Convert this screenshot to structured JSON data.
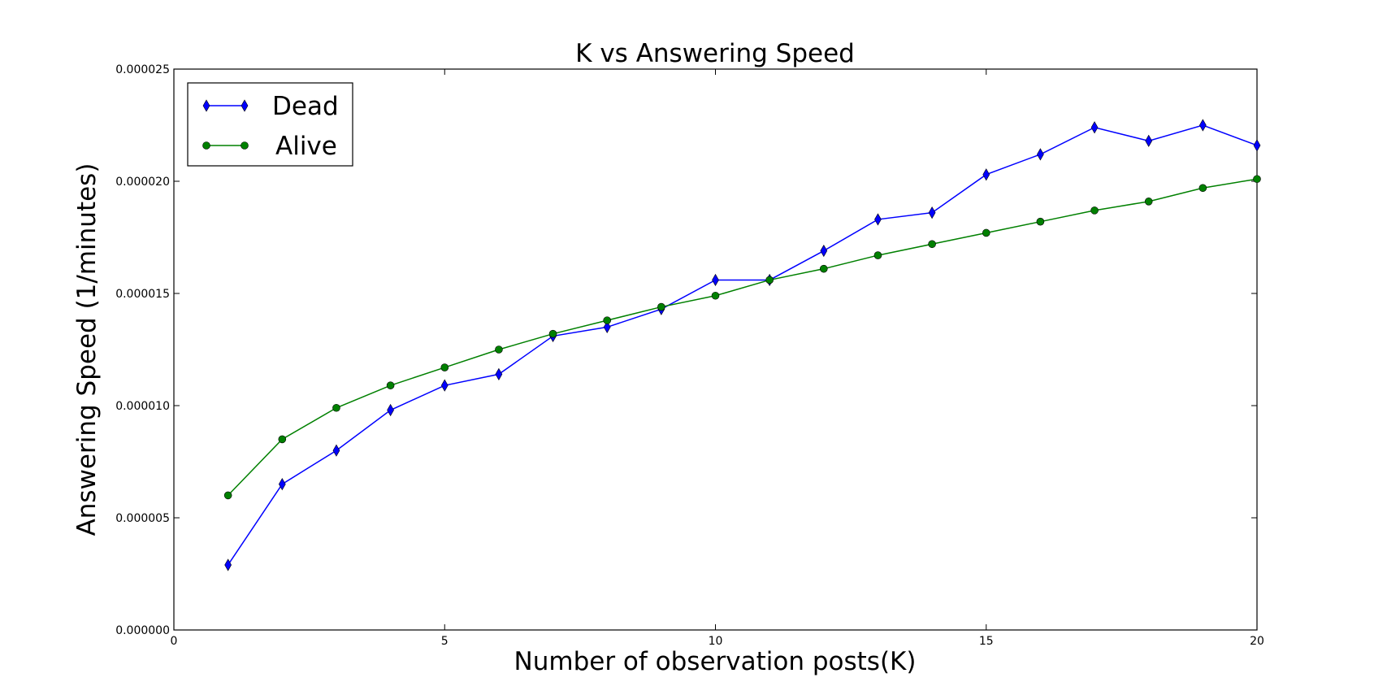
{
  "chart_data": {
    "type": "line",
    "title": "K vs Answering Speed",
    "xlabel": "Number of observation posts(K)",
    "ylabel": "Answering Speed (1/minutes)",
    "xlim": [
      0,
      20
    ],
    "ylim": [
      0,
      2.5e-05
    ],
    "xticks": [
      0,
      5,
      10,
      15,
      20
    ],
    "xtick_labels": [
      "0",
      "5",
      "10",
      "15",
      "20"
    ],
    "yticks": [
      0,
      5e-06,
      1e-05,
      1.5e-05,
      2e-05,
      2.5e-05
    ],
    "ytick_labels": [
      "0.000000",
      "0.000005",
      "0.000010",
      "0.000015",
      "0.000020",
      "0.000025"
    ],
    "grid": false,
    "legend_position": "upper-left",
    "x": [
      1,
      2,
      3,
      4,
      5,
      6,
      7,
      8,
      9,
      10,
      11,
      12,
      13,
      14,
      15,
      16,
      17,
      18,
      19,
      20
    ],
    "series": [
      {
        "name": "Dead",
        "color": "#0000ff",
        "marker": "thin-diamond",
        "values": [
          2.9e-06,
          6.5e-06,
          8e-06,
          9.8e-06,
          1.09e-05,
          1.14e-05,
          1.31e-05,
          1.35e-05,
          1.43e-05,
          1.56e-05,
          1.56e-05,
          1.69e-05,
          1.83e-05,
          1.86e-05,
          2.03e-05,
          2.12e-05,
          2.24e-05,
          2.18e-05,
          2.25e-05,
          2.16e-05
        ]
      },
      {
        "name": "Alive",
        "color": "#008000",
        "marker": "circle",
        "values": [
          6e-06,
          8.5e-06,
          9.9e-06,
          1.09e-05,
          1.17e-05,
          1.25e-05,
          1.32e-05,
          1.38e-05,
          1.44e-05,
          1.49e-05,
          1.56e-05,
          1.61e-05,
          1.67e-05,
          1.72e-05,
          1.77e-05,
          1.82e-05,
          1.87e-05,
          1.91e-05,
          1.97e-05,
          2.01e-05
        ]
      }
    ]
  }
}
